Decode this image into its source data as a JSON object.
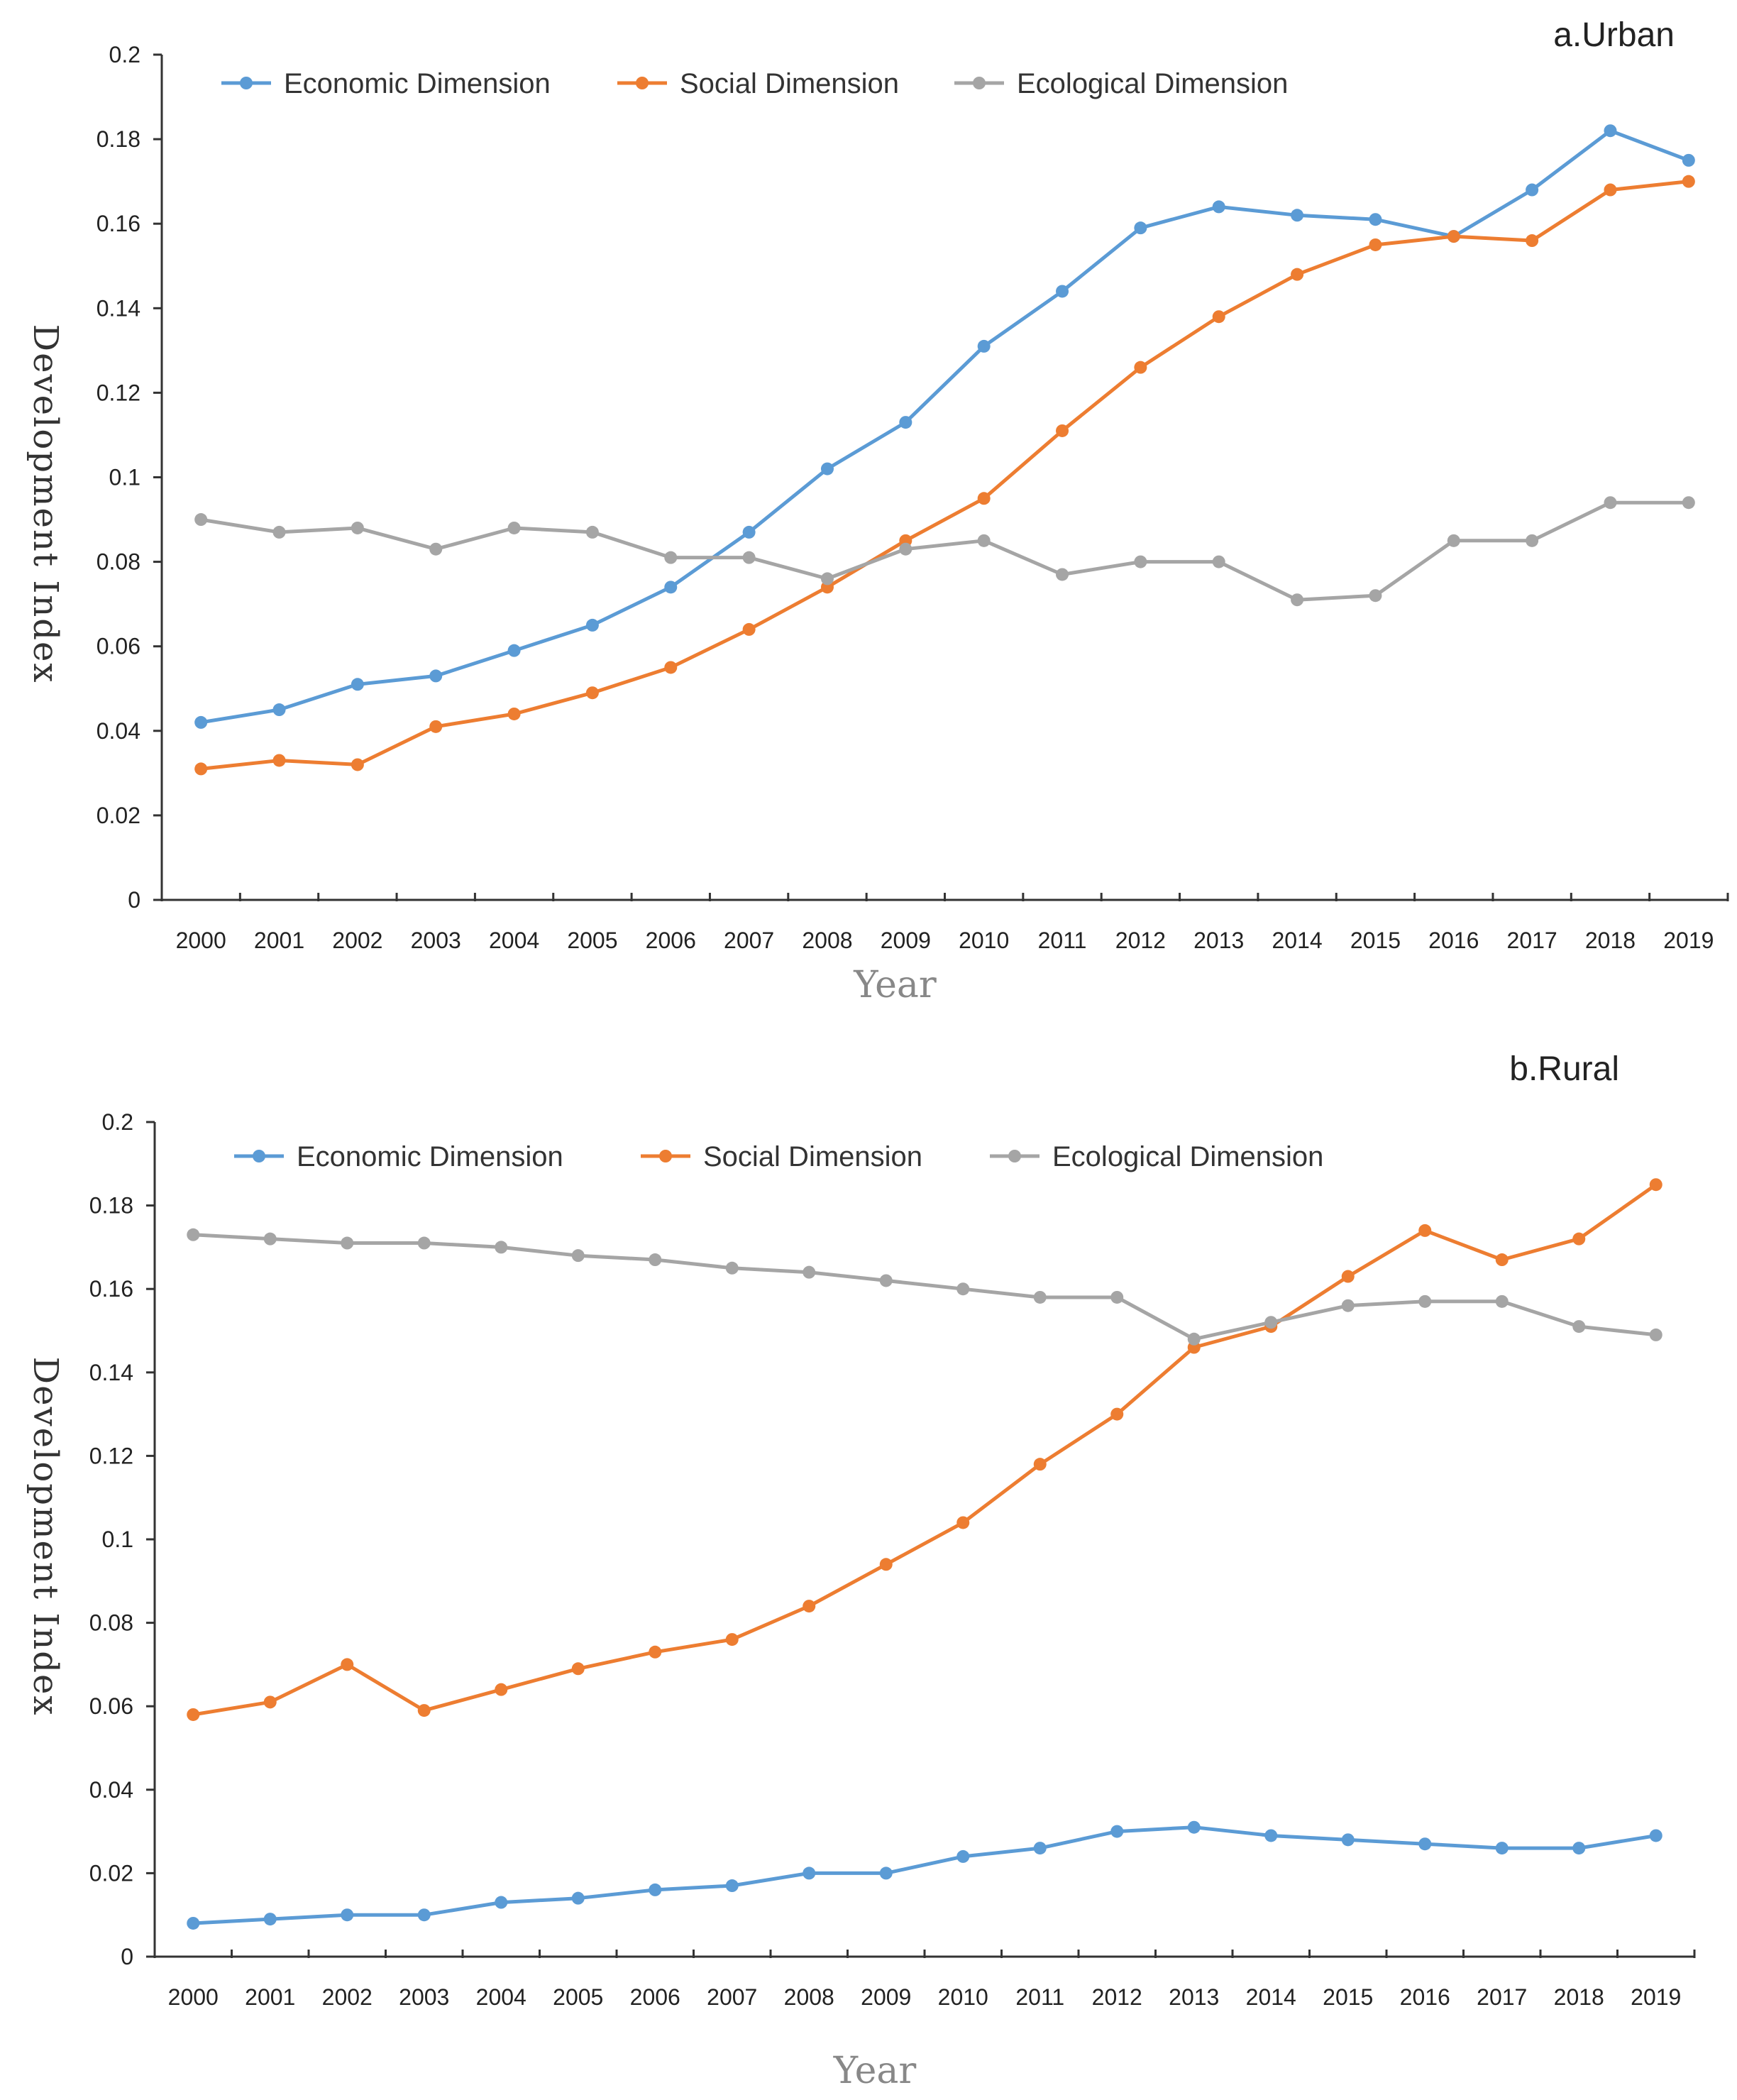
{
  "chart_data": [
    {
      "type": "line",
      "title": "a.Urban",
      "xlabel": "Year",
      "ylabel": "Development Index",
      "ylim": [
        0,
        0.2
      ],
      "yticks": [
        "0",
        "0.02",
        "0.04",
        "0.06",
        "0.08",
        "0.1",
        "0.12",
        "0.14",
        "0.16",
        "0.18",
        "0.2"
      ],
      "categories": [
        "2000",
        "2001",
        "2002",
        "2003",
        "2004",
        "2005",
        "2006",
        "2007",
        "2008",
        "2009",
        "2010",
        "2011",
        "2012",
        "2013",
        "2014",
        "2015",
        "2016",
        "2017",
        "2018",
        "2019"
      ],
      "series": [
        {
          "name": "Economic Dimension",
          "color": "#5B9BD5",
          "values": [
            0.042,
            0.045,
            0.051,
            0.053,
            0.059,
            0.065,
            0.074,
            0.087,
            0.102,
            0.113,
            0.131,
            0.144,
            0.159,
            0.164,
            0.162,
            0.161,
            0.157,
            0.168,
            0.182,
            0.175
          ]
        },
        {
          "name": "Social Dimension",
          "color": "#ED7D31",
          "values": [
            0.031,
            0.033,
            0.032,
            0.041,
            0.044,
            0.049,
            0.055,
            0.064,
            0.074,
            0.085,
            0.095,
            0.111,
            0.126,
            0.138,
            0.148,
            0.155,
            0.157,
            0.156,
            0.168,
            0.17
          ]
        },
        {
          "name": "Ecological Dimension",
          "color": "#A5A5A5",
          "values": [
            0.09,
            0.087,
            0.088,
            0.083,
            0.088,
            0.087,
            0.081,
            0.081,
            0.076,
            0.083,
            0.085,
            0.077,
            0.08,
            0.08,
            0.071,
            0.072,
            0.085,
            0.085,
            0.094,
            0.094
          ]
        }
      ]
    },
    {
      "type": "line",
      "title": "b.Rural",
      "xlabel": "Year",
      "ylabel": "Development Index",
      "ylim": [
        0,
        0.2
      ],
      "yticks": [
        "0",
        "0.02",
        "0.04",
        "0.06",
        "0.08",
        "0.1",
        "0.12",
        "0.14",
        "0.16",
        "0.18",
        "0.2"
      ],
      "categories": [
        "2000",
        "2001",
        "2002",
        "2003",
        "2004",
        "2005",
        "2006",
        "2007",
        "2008",
        "2009",
        "2010",
        "2011",
        "2012",
        "2013",
        "2014",
        "2015",
        "2016",
        "2017",
        "2018",
        "2019"
      ],
      "series": [
        {
          "name": "Economic Dimension",
          "color": "#5B9BD5",
          "values": [
            0.008,
            0.009,
            0.01,
            0.01,
            0.013,
            0.014,
            0.016,
            0.017,
            0.02,
            0.02,
            0.024,
            0.026,
            0.03,
            0.031,
            0.029,
            0.028,
            0.027,
            0.026,
            0.026,
            0.029
          ]
        },
        {
          "name": "Social Dimension",
          "color": "#ED7D31",
          "values": [
            0.058,
            0.061,
            0.07,
            0.059,
            0.064,
            0.069,
            0.073,
            0.076,
            0.084,
            0.094,
            0.104,
            0.118,
            0.13,
            0.146,
            0.151,
            0.163,
            0.174,
            0.167,
            0.172,
            0.185
          ]
        },
        {
          "name": "Ecological Dimension",
          "color": "#A5A5A5",
          "values": [
            0.173,
            0.172,
            0.171,
            0.171,
            0.17,
            0.168,
            0.167,
            0.165,
            0.164,
            0.162,
            0.16,
            0.158,
            0.158,
            0.148,
            0.152,
            0.156,
            0.157,
            0.157,
            0.151,
            0.149
          ]
        }
      ]
    }
  ]
}
